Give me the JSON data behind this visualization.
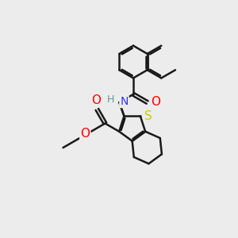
{
  "bg_color": "#ececec",
  "bond_color": "#1a1a1a",
  "bond_width": 1.8,
  "atom_colors": {
    "O": "#ff0000",
    "N": "#3333ff",
    "S": "#cccc00",
    "H_N": "#5a9a9a",
    "C": "#1a1a1a"
  },
  "font_size": 10,
  "bl": 0.68
}
